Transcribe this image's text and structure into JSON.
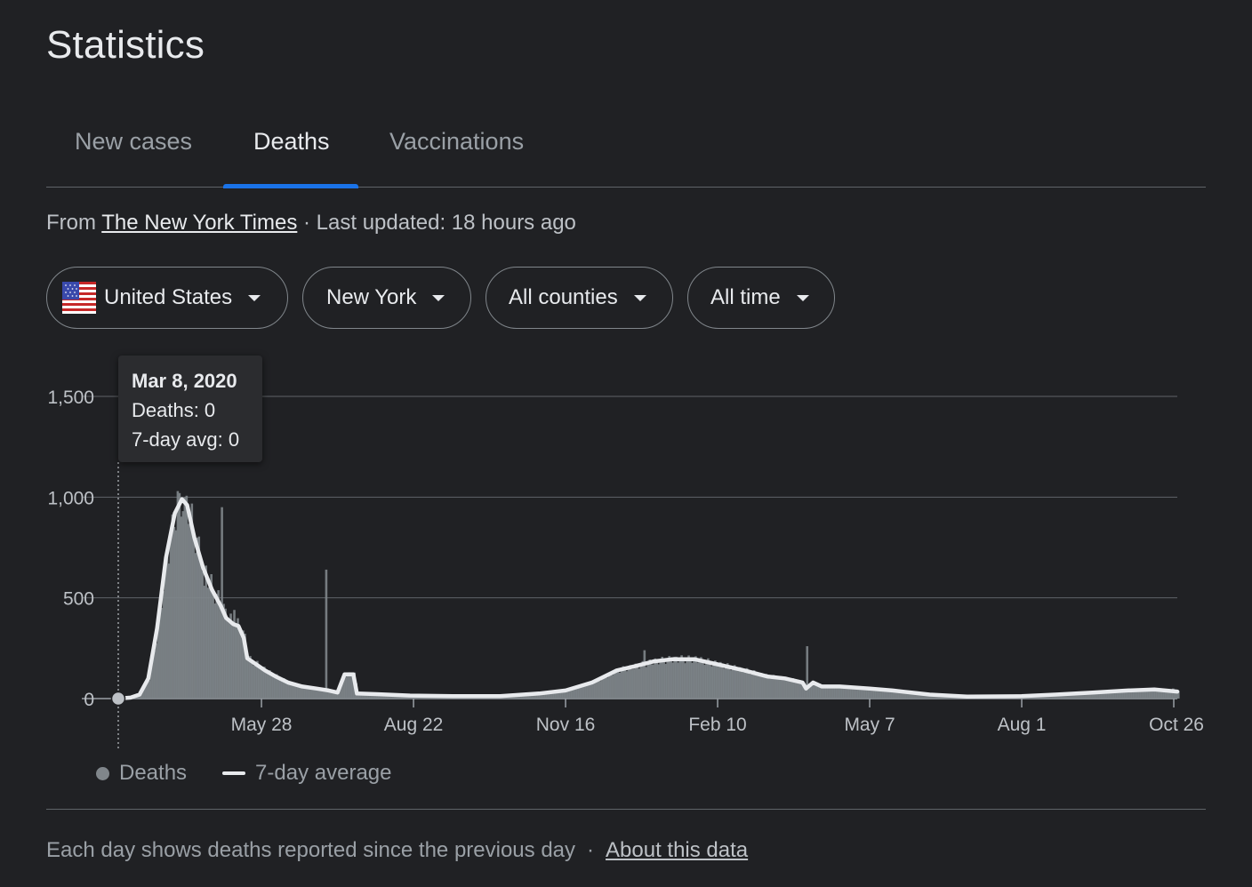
{
  "page": {
    "title": "Statistics",
    "tabs": [
      {
        "label": "New cases",
        "active": false
      },
      {
        "label": "Deaths",
        "active": true
      },
      {
        "label": "Vaccinations",
        "active": false
      }
    ],
    "source_prefix": "From",
    "source_name": "The New York Times",
    "source_suffix": "· Last updated: 18 hours ago",
    "filters": {
      "country": {
        "label": "United States",
        "icon": "us-flag-icon"
      },
      "state": {
        "label": "New York"
      },
      "county": {
        "label": "All counties"
      },
      "range": {
        "label": "All time"
      }
    },
    "tooltip": {
      "date": "Mar 8, 2020",
      "deaths": "Deaths: 0",
      "avg": "7-day avg: 0"
    },
    "legend": {
      "deaths": "Deaths",
      "avg": "7-day average"
    },
    "footer": {
      "note": "Each day shows deaths reported since the previous day",
      "separator": "·",
      "link": "About this data"
    },
    "colors": {
      "background": "#202124",
      "accent": "#1a73e8",
      "bars": "#80868b",
      "line": "#e8eaed",
      "text": "#e8eaed",
      "muted": "#9aa0a6"
    }
  },
  "chart_data": {
    "type": "bar",
    "y_ticks": [
      "0",
      "500",
      "1,000",
      "1,500"
    ],
    "ylim": [
      0,
      1500
    ],
    "x_ticks": [
      {
        "label": "May 28",
        "date": "2020-05-28"
      },
      {
        "label": "Aug 22",
        "date": "2020-08-22"
      },
      {
        "label": "Nov 16",
        "date": "2020-11-16"
      },
      {
        "label": "Feb 10",
        "date": "2021-02-10"
      },
      {
        "label": "May 7",
        "date": "2021-05-07"
      },
      {
        "label": "Aug 1",
        "date": "2021-08-01"
      },
      {
        "label": "Oct 26",
        "date": "2021-10-26"
      }
    ],
    "x_range": [
      "2020-03-08",
      "2021-10-28"
    ],
    "grid": true,
    "legend_position": "bottom-left",
    "highlight": {
      "date": "2020-03-08",
      "deaths": 0,
      "avg": 0
    },
    "series": [
      {
        "name": "7-day average",
        "type": "line",
        "points": [
          [
            "2020-03-08",
            0
          ],
          [
            "2020-03-15",
            5
          ],
          [
            "2020-03-20",
            20
          ],
          [
            "2020-03-25",
            100
          ],
          [
            "2020-03-30",
            350
          ],
          [
            "2020-04-04",
            700
          ],
          [
            "2020-04-09",
            920
          ],
          [
            "2020-04-13",
            990
          ],
          [
            "2020-04-16",
            960
          ],
          [
            "2020-04-20",
            800
          ],
          [
            "2020-04-25",
            650
          ],
          [
            "2020-04-30",
            540
          ],
          [
            "2020-05-05",
            460
          ],
          [
            "2020-05-08",
            400
          ],
          [
            "2020-05-12",
            370
          ],
          [
            "2020-05-15",
            360
          ],
          [
            "2020-05-18",
            300
          ],
          [
            "2020-05-20",
            200
          ],
          [
            "2020-05-25",
            170
          ],
          [
            "2020-05-30",
            140
          ],
          [
            "2020-06-05",
            110
          ],
          [
            "2020-06-12",
            80
          ],
          [
            "2020-06-20",
            60
          ],
          [
            "2020-06-28",
            50
          ],
          [
            "2020-07-05",
            40
          ],
          [
            "2020-07-10",
            30
          ],
          [
            "2020-07-14",
            120
          ],
          [
            "2020-07-19",
            120
          ],
          [
            "2020-07-21",
            25
          ],
          [
            "2020-08-01",
            22
          ],
          [
            "2020-08-20",
            15
          ],
          [
            "2020-09-15",
            12
          ],
          [
            "2020-10-10",
            12
          ],
          [
            "2020-11-01",
            25
          ],
          [
            "2020-11-16",
            40
          ],
          [
            "2020-12-01",
            80
          ],
          [
            "2020-12-15",
            140
          ],
          [
            "2020-12-25",
            160
          ],
          [
            "2021-01-05",
            185
          ],
          [
            "2021-01-15",
            195
          ],
          [
            "2021-01-28",
            195
          ],
          [
            "2021-02-10",
            170
          ],
          [
            "2021-02-25",
            140
          ],
          [
            "2021-03-10",
            110
          ],
          [
            "2021-03-20",
            100
          ],
          [
            "2021-03-30",
            80
          ],
          [
            "2021-04-01",
            50
          ],
          [
            "2021-04-05",
            80
          ],
          [
            "2021-04-10",
            60
          ],
          [
            "2021-04-20",
            60
          ],
          [
            "2021-05-07",
            50
          ],
          [
            "2021-05-20",
            40
          ],
          [
            "2021-06-10",
            20
          ],
          [
            "2021-07-01",
            10
          ],
          [
            "2021-08-01",
            12
          ],
          [
            "2021-08-20",
            20
          ],
          [
            "2021-09-10",
            30
          ],
          [
            "2021-09-30",
            40
          ],
          [
            "2021-10-15",
            45
          ],
          [
            "2021-10-28",
            35
          ]
        ]
      },
      {
        "name": "Deaths",
        "type": "bar",
        "points": [
          [
            "2020-04-10",
            1030
          ],
          [
            "2020-04-11",
            1020
          ],
          [
            "2020-04-14",
            1000
          ],
          [
            "2020-04-19",
            800
          ],
          [
            "2020-04-25",
            560
          ],
          [
            "2020-04-30",
            520
          ],
          [
            "2020-05-05",
            950
          ],
          [
            "2020-05-08",
            400
          ],
          [
            "2020-05-12",
            440
          ],
          [
            "2020-07-03",
            640
          ],
          [
            "2020-12-30",
            240
          ],
          [
            "2021-01-20",
            215
          ],
          [
            "2021-04-01",
            260
          ],
          [
            "2021-10-25",
            50
          ]
        ]
      }
    ]
  }
}
